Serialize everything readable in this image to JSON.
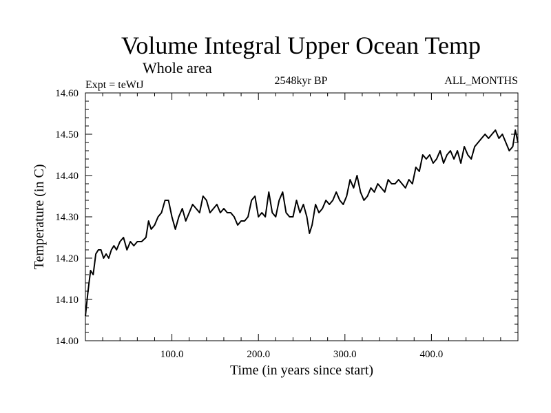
{
  "chart_data": {
    "type": "line",
    "title": "Volume Integral Upper Ocean Temp",
    "subtitle": "Whole area",
    "annotations": {
      "left": "Expt = teWtJ",
      "center": "2548kyr BP",
      "right": "ALL_MONTHS"
    },
    "xlabel": "Time (in years since start)",
    "ylabel": "Temperature (in C)",
    "xlim": [
      0,
      500
    ],
    "ylim": [
      14.0,
      14.6
    ],
    "x_ticks": [
      100,
      200,
      300,
      400
    ],
    "x_tick_labels": [
      "100.0",
      "200.0",
      "300.0",
      "400.0"
    ],
    "y_ticks": [
      14.0,
      14.1,
      14.2,
      14.3,
      14.4,
      14.5,
      14.6
    ],
    "y_tick_labels": [
      "14.00",
      "14.10",
      "14.20",
      "14.30",
      "14.40",
      "14.50",
      "14.60"
    ],
    "grid": false,
    "series": [
      {
        "name": "Volume Integral Upper Ocean Temp",
        "color": "#000000",
        "x": [
          0,
          3,
          6,
          9,
          12,
          15,
          18,
          21,
          24,
          27,
          30,
          33,
          36,
          40,
          44,
          48,
          52,
          56,
          60,
          65,
          70,
          73,
          76,
          80,
          84,
          88,
          92,
          96,
          100,
          104,
          108,
          112,
          116,
          120,
          124,
          128,
          132,
          136,
          140,
          144,
          148,
          152,
          156,
          160,
          164,
          168,
          172,
          176,
          180,
          184,
          188,
          192,
          196,
          200,
          204,
          208,
          212,
          216,
          220,
          224,
          228,
          232,
          236,
          240,
          244,
          248,
          252,
          256,
          259,
          262,
          266,
          270,
          274,
          278,
          282,
          286,
          290,
          294,
          298,
          302,
          306,
          310,
          314,
          318,
          322,
          326,
          330,
          334,
          338,
          342,
          346,
          350,
          354,
          358,
          362,
          366,
          370,
          374,
          378,
          382,
          386,
          390,
          394,
          398,
          402,
          406,
          410,
          414,
          418,
          422,
          426,
          430,
          434,
          438,
          442,
          446,
          450,
          454,
          458,
          462,
          466,
          470,
          474,
          478,
          482,
          486,
          490,
          494,
          497,
          500
        ],
        "y": [
          14.06,
          14.12,
          14.17,
          14.16,
          14.21,
          14.22,
          14.22,
          14.2,
          14.21,
          14.2,
          14.22,
          14.23,
          14.22,
          14.24,
          14.25,
          14.22,
          14.24,
          14.23,
          14.24,
          14.24,
          14.25,
          14.29,
          14.27,
          14.28,
          14.3,
          14.31,
          14.34,
          14.34,
          14.3,
          14.27,
          14.3,
          14.32,
          14.29,
          14.31,
          14.33,
          14.32,
          14.31,
          14.35,
          14.34,
          14.31,
          14.32,
          14.33,
          14.31,
          14.32,
          14.31,
          14.31,
          14.3,
          14.28,
          14.29,
          14.29,
          14.3,
          14.34,
          14.35,
          14.3,
          14.31,
          14.3,
          14.36,
          14.31,
          14.3,
          14.34,
          14.36,
          14.31,
          14.3,
          14.3,
          14.34,
          14.31,
          14.33,
          14.3,
          14.26,
          14.28,
          14.33,
          14.31,
          14.32,
          14.34,
          14.33,
          14.34,
          14.36,
          14.34,
          14.33,
          14.35,
          14.39,
          14.37,
          14.4,
          14.36,
          14.34,
          14.35,
          14.37,
          14.36,
          14.38,
          14.37,
          14.36,
          14.39,
          14.38,
          14.38,
          14.39,
          14.38,
          14.37,
          14.39,
          14.38,
          14.42,
          14.41,
          14.45,
          14.44,
          14.45,
          14.43,
          14.44,
          14.46,
          14.43,
          14.45,
          14.46,
          14.44,
          14.46,
          14.43,
          14.47,
          14.45,
          14.44,
          14.47,
          14.48,
          14.49,
          14.5,
          14.49,
          14.5,
          14.51,
          14.49,
          14.5,
          14.48,
          14.46,
          14.47,
          14.51,
          14.48
        ]
      }
    ]
  }
}
